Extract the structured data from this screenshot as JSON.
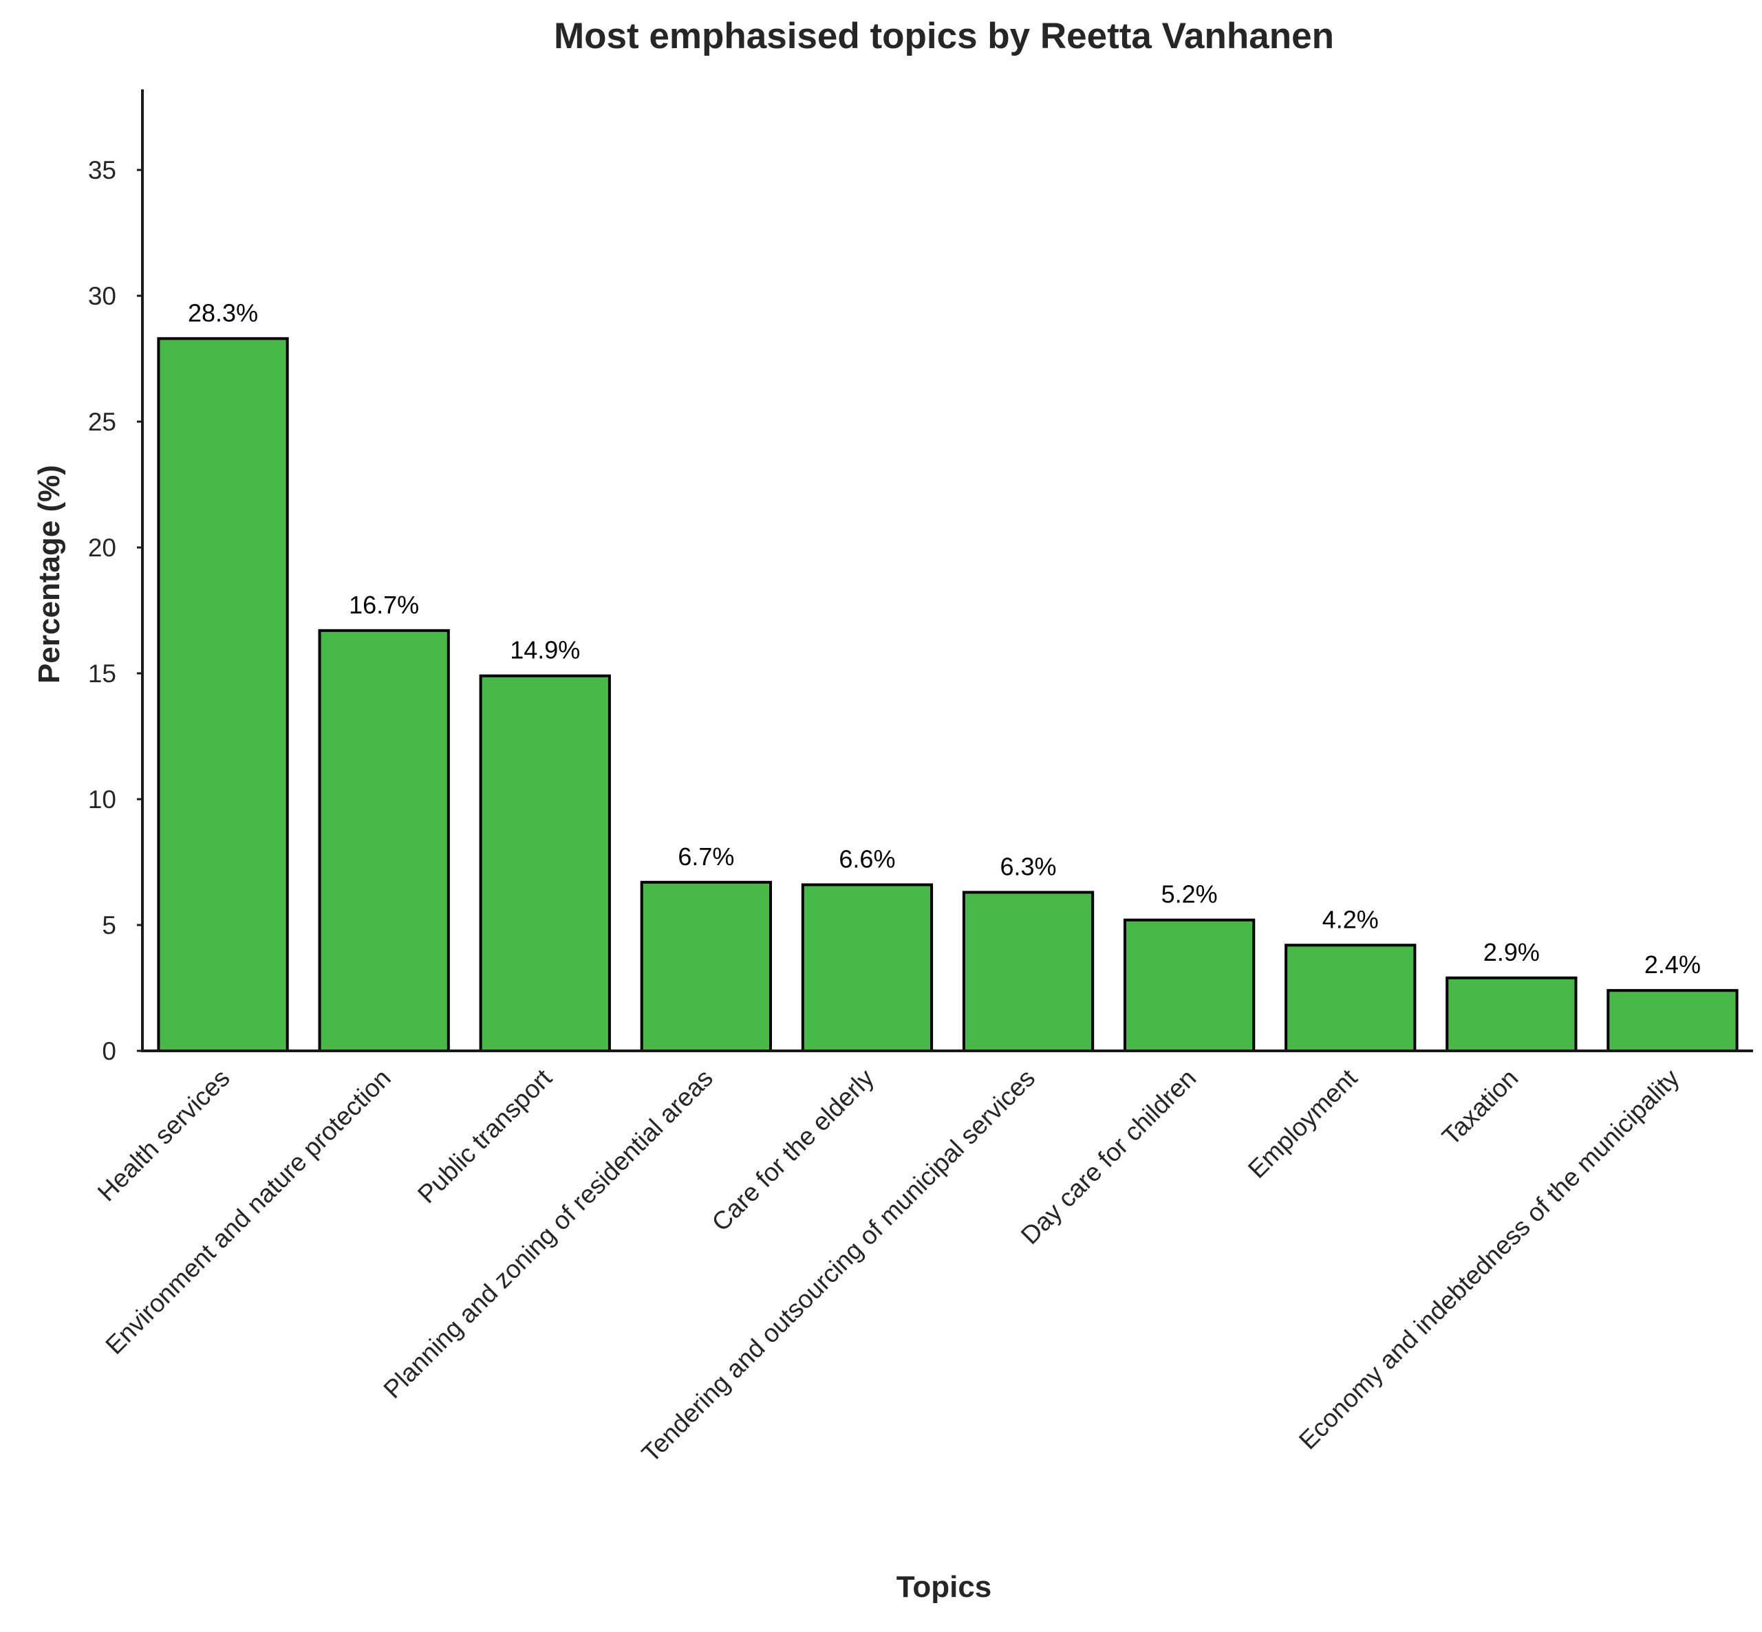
{
  "chart_data": {
    "type": "bar",
    "title": "Most emphasised topics by Reetta Vanhanen",
    "xlabel": "Topics",
    "ylabel": "Percentage (%)",
    "categories": [
      "Health services",
      "Environment and nature protection",
      "Public transport",
      "Planning and zoning of residential areas",
      "Care for the elderly",
      "Tendering and outsourcing of municipal services",
      "Day care for children",
      "Employment",
      "Taxation",
      "Economy and indebtedness of the municipality"
    ],
    "values": [
      28.3,
      16.7,
      14.9,
      6.7,
      6.6,
      6.3,
      5.2,
      4.2,
      2.9,
      2.4
    ],
    "data_labels": [
      "28.3%",
      "16.7%",
      "14.9%",
      "6.7%",
      "6.6%",
      "6.3%",
      "5.2%",
      "4.2%",
      "2.9%",
      "2.4%"
    ],
    "ylim": [
      0,
      38.2
    ],
    "yticks": [
      0,
      5,
      10,
      15,
      20,
      25,
      30,
      35
    ],
    "bar_color": "#48b848",
    "bar_edge_color": "#000000",
    "grid": false,
    "legend": "none"
  }
}
